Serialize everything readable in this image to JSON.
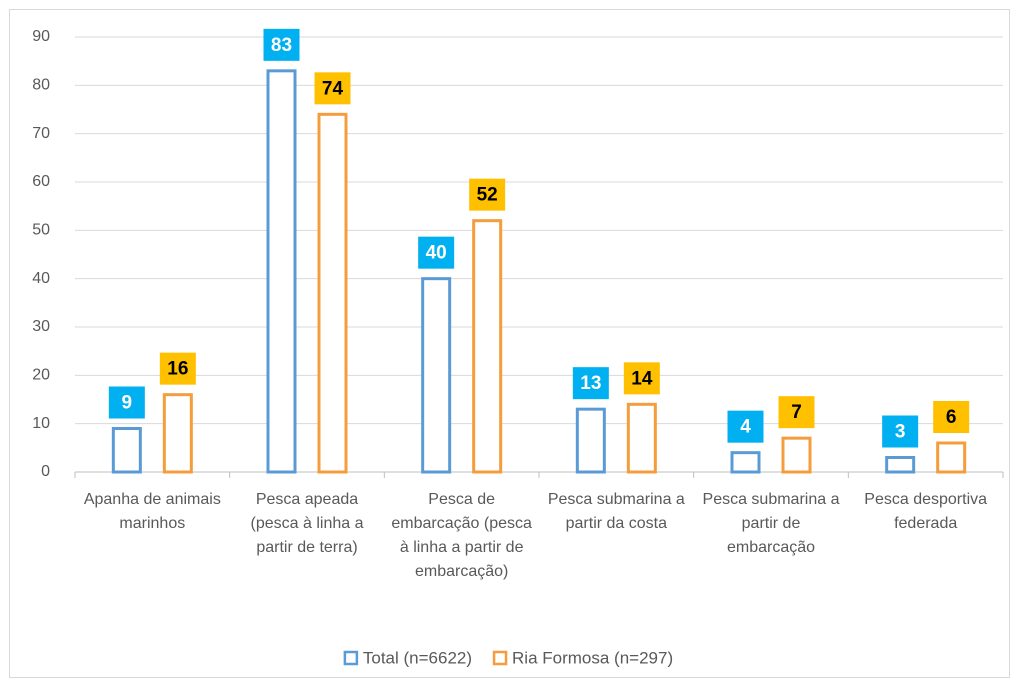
{
  "chart_data": {
    "type": "bar",
    "categories": [
      "Apanha de animais marinhos",
      "Pesca apeada (pesca à linha a partir de terra)",
      "Pesca de embarcação (pesca à linha a partir de embarcação)",
      "Pesca submarina a partir da costa",
      "Pesca submarina a partir de embarcação",
      "Pesca desportiva federada"
    ],
    "series": [
      {
        "name": "Total (n=6622)",
        "color": "#5b9bd5",
        "label_fill": "#00b0f0",
        "label_text_color": "#ffffff",
        "values": [
          9,
          83,
          40,
          13,
          4,
          3
        ]
      },
      {
        "name": "Ria Formosa (n=297)",
        "color": "#f59d3d",
        "label_fill": "#ffc000",
        "label_text_color": "#000000",
        "values": [
          16,
          74,
          52,
          14,
          7,
          6
        ]
      }
    ],
    "ylim": [
      0,
      90
    ],
    "yticks": [
      0,
      10,
      20,
      30,
      40,
      50,
      60,
      70,
      80,
      90
    ],
    "grid": true,
    "legend": "bottom"
  }
}
